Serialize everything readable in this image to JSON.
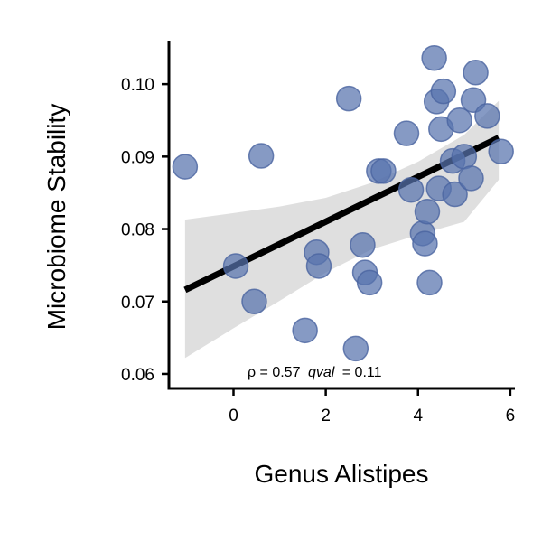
{
  "chart_data": {
    "type": "scatter",
    "title": "",
    "xlabel": "Genus Alistipes",
    "ylabel": "Microbiome Stability",
    "xlim": [
      -1.4,
      6.1
    ],
    "ylim": [
      0.058,
      0.106
    ],
    "xticks": [
      0,
      2,
      4,
      6
    ],
    "yticks": [
      0.06,
      0.07,
      0.08,
      0.09,
      0.1
    ],
    "xtick_labels": [
      "0",
      "2",
      "4",
      "6"
    ],
    "ytick_labels": [
      "0.06",
      "0.07",
      "0.08",
      "0.09",
      "0.10"
    ],
    "grid": false,
    "legend": "none",
    "point_color": "#5873ad",
    "line_color": "#000000",
    "band_color": "#d9d9d9",
    "points": [
      {
        "x": -1.05,
        "y": 0.0886
      },
      {
        "x": 0.6,
        "y": 0.0901
      },
      {
        "x": 0.05,
        "y": 0.0749
      },
      {
        "x": 0.45,
        "y": 0.07
      },
      {
        "x": 1.55,
        "y": 0.066
      },
      {
        "x": 1.8,
        "y": 0.0768
      },
      {
        "x": 1.85,
        "y": 0.0749
      },
      {
        "x": 2.5,
        "y": 0.098
      },
      {
        "x": 2.65,
        "y": 0.0635
      },
      {
        "x": 2.8,
        "y": 0.0778
      },
      {
        "x": 2.85,
        "y": 0.074
      },
      {
        "x": 2.95,
        "y": 0.0726
      },
      {
        "x": 3.15,
        "y": 0.088
      },
      {
        "x": 3.25,
        "y": 0.088
      },
      {
        "x": 3.75,
        "y": 0.0932
      },
      {
        "x": 3.85,
        "y": 0.0854
      },
      {
        "x": 4.1,
        "y": 0.0794
      },
      {
        "x": 4.15,
        "y": 0.078
      },
      {
        "x": 4.2,
        "y": 0.0824
      },
      {
        "x": 4.25,
        "y": 0.0726
      },
      {
        "x": 4.35,
        "y": 0.1036
      },
      {
        "x": 4.4,
        "y": 0.0976
      },
      {
        "x": 4.45,
        "y": 0.0856
      },
      {
        "x": 4.5,
        "y": 0.0938
      },
      {
        "x": 4.55,
        "y": 0.099
      },
      {
        "x": 4.75,
        "y": 0.0894
      },
      {
        "x": 4.8,
        "y": 0.0848
      },
      {
        "x": 4.9,
        "y": 0.095
      },
      {
        "x": 5.0,
        "y": 0.09
      },
      {
        "x": 5.15,
        "y": 0.087
      },
      {
        "x": 5.2,
        "y": 0.0978
      },
      {
        "x": 5.25,
        "y": 0.1016
      },
      {
        "x": 5.5,
        "y": 0.0956
      },
      {
        "x": 5.8,
        "y": 0.0907
      }
    ],
    "regression_line": {
      "x": [
        -1.05,
        5.75
      ],
      "y": [
        0.0716,
        0.0926
      ]
    },
    "confidence_band": {
      "x": [
        -1.05,
        0,
        1,
        2,
        3,
        4,
        5,
        5.75
      ],
      "upper": [
        0.0813,
        0.0822,
        0.0831,
        0.0843,
        0.0864,
        0.0893,
        0.093,
        0.0977
      ],
      "lower": [
        0.0622,
        0.0663,
        0.0701,
        0.074,
        0.0772,
        0.0792,
        0.081,
        0.0868
      ]
    },
    "annotation": {
      "rho_label": "ρ = 0.57",
      "qval_label": "qval",
      "qval_value": "= 0.11"
    }
  }
}
